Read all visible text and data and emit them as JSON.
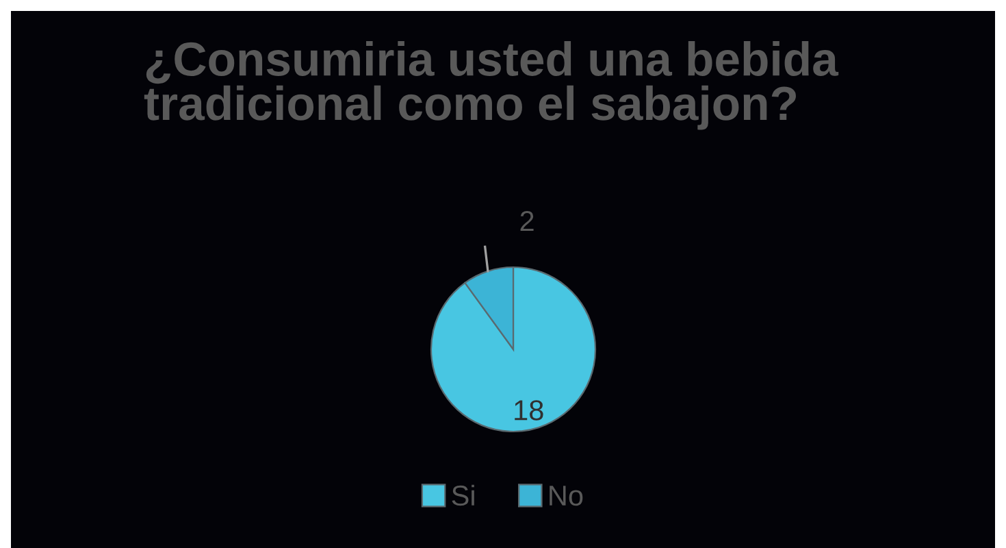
{
  "chart_data": {
    "type": "pie",
    "title": "¿Consumiria usted una bebida tradicional como el sabajon?",
    "categories": [
      "Si",
      "No"
    ],
    "values": [
      18,
      2
    ],
    "colors": [
      "#48c6e2",
      "#3cb4d6"
    ],
    "data_labels": true,
    "legend": "bottom"
  }
}
